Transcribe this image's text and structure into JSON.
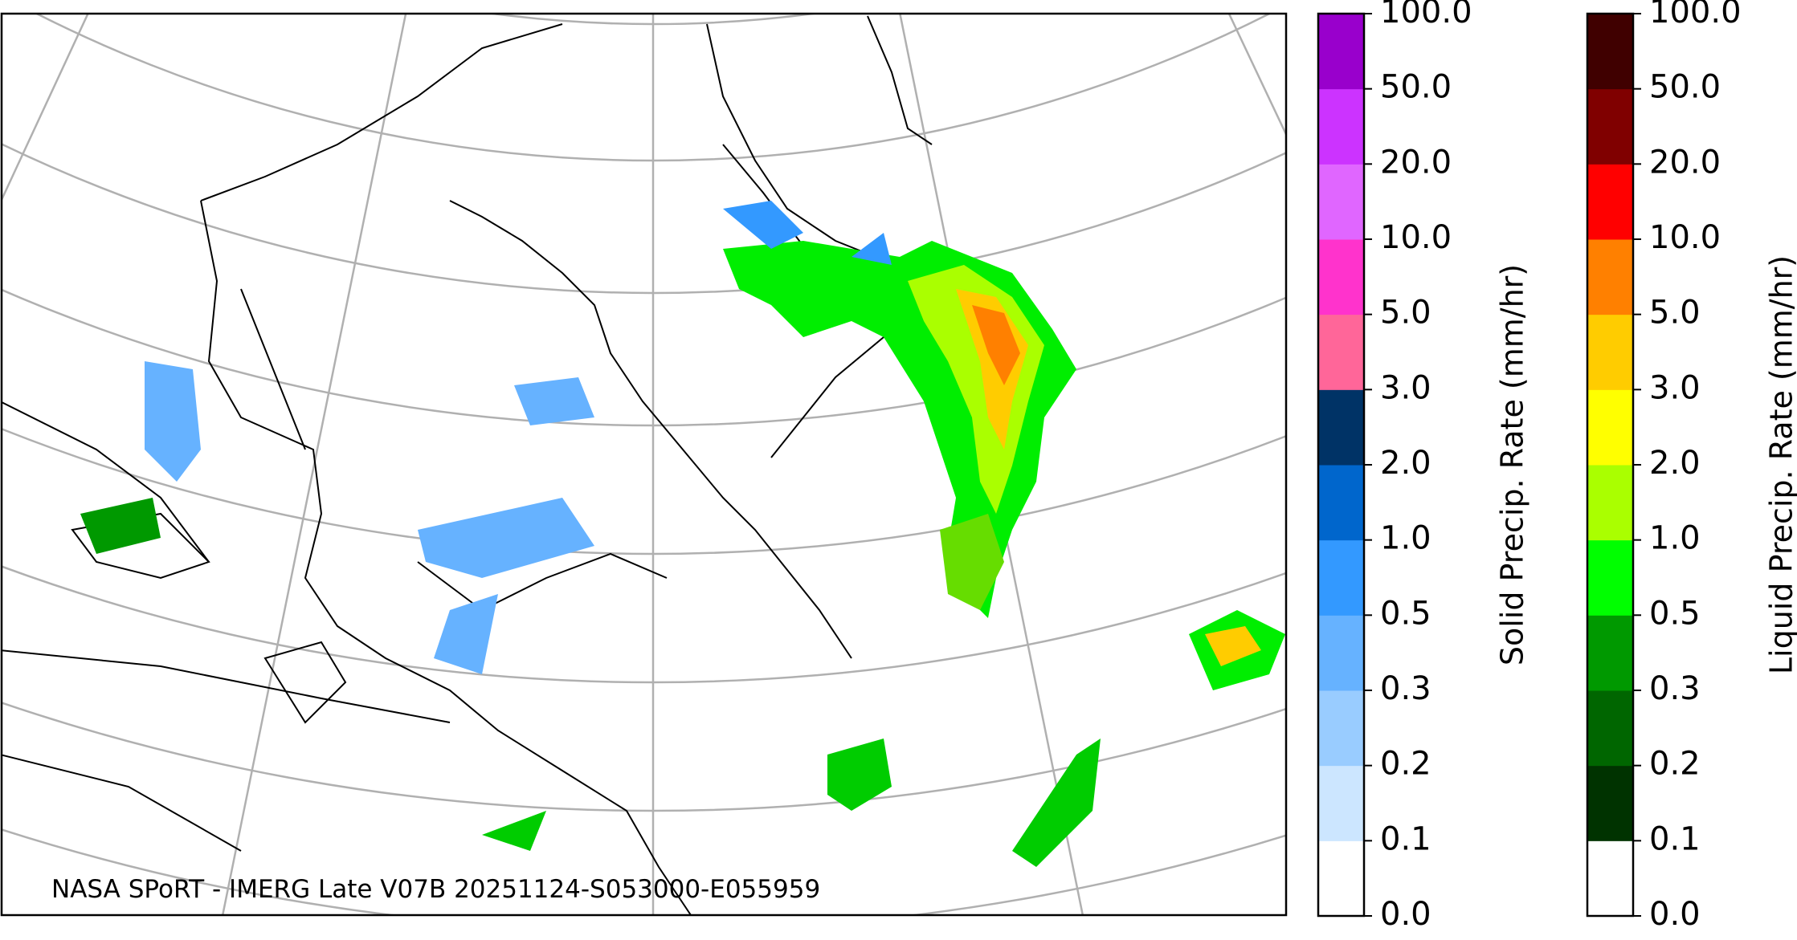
{
  "map": {
    "credit": "NASA SPoRT - IMERG Late V07B 20251124-S053000-E055959"
  },
  "colorbars": [
    {
      "label": "Solid Precip. Rate (mm/hr)",
      "colors": [
        "#ffffff",
        "#cce6ff",
        "#99ccff",
        "#66b2ff",
        "#3399ff",
        "#0066cc",
        "#003366",
        "#ff6699",
        "#ff33cc",
        "#e066ff",
        "#cc33ff",
        "#9900cc"
      ],
      "ticks": [
        "0.0",
        "0.1",
        "0.2",
        "0.3",
        "0.5",
        "1.0",
        "2.0",
        "3.0",
        "5.0",
        "10.0",
        "20.0",
        "50.0",
        "100.0"
      ]
    },
    {
      "label": "Liquid Precip. Rate (mm/hr)",
      "colors": [
        "#ffffff",
        "#003300",
        "#006600",
        "#009900",
        "#00ff00",
        "#aaff00",
        "#ffff00",
        "#ffcc00",
        "#ff8000",
        "#ff0000",
        "#800000",
        "#400000"
      ],
      "ticks": [
        "0.0",
        "0.1",
        "0.2",
        "0.3",
        "0.5",
        "1.0",
        "2.0",
        "3.0",
        "5.0",
        "10.0",
        "20.0",
        "50.0",
        "100.0"
      ]
    }
  ]
}
